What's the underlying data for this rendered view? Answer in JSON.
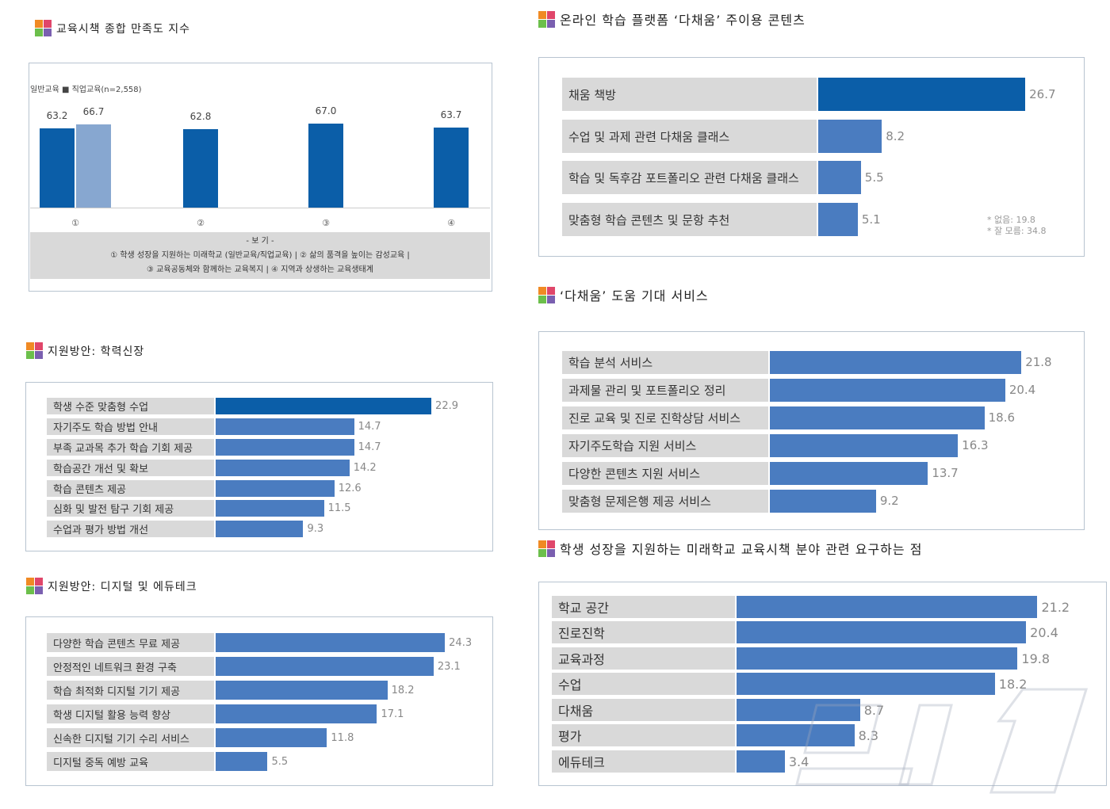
{
  "colors": {
    "dark_bar": "#0b5ea8",
    "light_bar": "#4a7cc0",
    "secondary_bar": "#87a7d0",
    "label_bg": "#d9d9d9",
    "logo": [
      "#f08a24",
      "#e0466a",
      "#6cbf4b",
      "#7a5fb0"
    ]
  },
  "watermark": "뉴스1",
  "chart_data": [
    {
      "type": "bar",
      "title": "교육시책 종합 만족도 지수",
      "legend": "일반교육 ■ 직업교육(n=2,558)",
      "categories": [
        "①",
        "②",
        "③",
        "④"
      ],
      "series": [
        {
          "name": "일반교육",
          "values": [
            63.2,
            62.8,
            67.0,
            63.7
          ]
        },
        {
          "name": "직업교육",
          "values": [
            66.7,
            null,
            null,
            null
          ]
        }
      ],
      "value_labels": [
        "63.2",
        "66.7",
        "62.8",
        "67.0",
        "63.7"
      ],
      "notes": {
        "heading": "- 보 기 -",
        "line1": "① 학생 성장을 지원하는 미래학교 (일반교육/직업교육) | ② 삶의 품격을 높이는 감성교육 |",
        "line2": "③ 교육공동체와 함께하는 교육복지 | ④ 지역과 상생하는 교육생태계"
      },
      "ylim": [
        0,
        100
      ]
    },
    {
      "type": "bar",
      "orientation": "horizontal",
      "title": "지원방안: 학력신장",
      "categories": [
        "학생 수준 맞춤형 수업",
        "자기주도 학습 방법 안내",
        "부족 교과목 추가 학습 기회 제공",
        "학습공간 개선 및 확보",
        "학습 콘텐츠 제공",
        "심화 및 발전 탐구 기회 제공",
        "수업과 평가 방법 개선"
      ],
      "values": [
        22.9,
        14.7,
        14.7,
        14.2,
        12.6,
        11.5,
        9.3
      ],
      "labels": [
        "22.9",
        "14.7",
        "14.7",
        "14.2",
        "12.6",
        "11.5",
        "9.3"
      ]
    },
    {
      "type": "bar",
      "orientation": "horizontal",
      "title": "지원방안: 디지털 및 에듀테크",
      "categories": [
        "다양한 학습 콘텐츠 무료 제공",
        "안정적인 네트워크 환경 구축",
        "학습 최적화 디지털 기기 제공",
        "학생 디지털 활용 능력 향상",
        "신속한 디지털 기기 수리 서비스",
        "디지털 중독 예방 교육"
      ],
      "values": [
        24.3,
        23.1,
        18.2,
        17.1,
        11.8,
        5.5
      ],
      "labels": [
        "24.3",
        "23.1",
        "18.2",
        "17.1",
        "11.8",
        "5.5"
      ]
    },
    {
      "type": "bar",
      "orientation": "horizontal",
      "title": "온라인 학습 플랫폼 ‘다채움’ 주이용 콘텐츠",
      "categories": [
        "채움 책방",
        "수업 및 과제 관련 다채움 클래스",
        "학습 및 독후감 포트폴리오 관련 다채움 클래스",
        "맞춤형 학습 콘텐츠 및 문항 추천"
      ],
      "values": [
        26.7,
        8.2,
        5.5,
        5.1
      ],
      "labels": [
        "26.7",
        "8.2",
        "5.5",
        "5.1"
      ],
      "footnotes": [
        "* 없음: 19.8",
        "* 잘 모름: 34.8"
      ]
    },
    {
      "type": "bar",
      "orientation": "horizontal",
      "title": "‘다채움’ 도움 기대 서비스",
      "categories": [
        "학습 분석 서비스",
        "과제물 관리 및 포트폴리오 정리",
        "진로 교육 및 진로 진학상담 서비스",
        "자기주도학습 지원 서비스",
        "다양한 콘텐츠 지원 서비스",
        "맞춤형 문제은행 제공 서비스"
      ],
      "values": [
        21.8,
        20.4,
        18.6,
        16.3,
        13.7,
        9.2
      ],
      "labels": [
        "21.8",
        "20.4",
        "18.6",
        "16.3",
        "13.7",
        "9.2"
      ]
    },
    {
      "type": "bar",
      "orientation": "horizontal",
      "title": "학생 성장을 지원하는 미래학교 교육시책 분야 관련 요구하는 점",
      "categories": [
        "학교 공간",
        "진로진학",
        "교육과정",
        "수업",
        "다채움",
        "평가",
        "에듀테크"
      ],
      "values": [
        21.2,
        20.4,
        19.8,
        18.2,
        8.7,
        8.3,
        3.4
      ],
      "labels": [
        "21.2",
        "20.4",
        "19.8",
        "18.2",
        "8.7",
        "8.3",
        "3.4"
      ]
    }
  ]
}
